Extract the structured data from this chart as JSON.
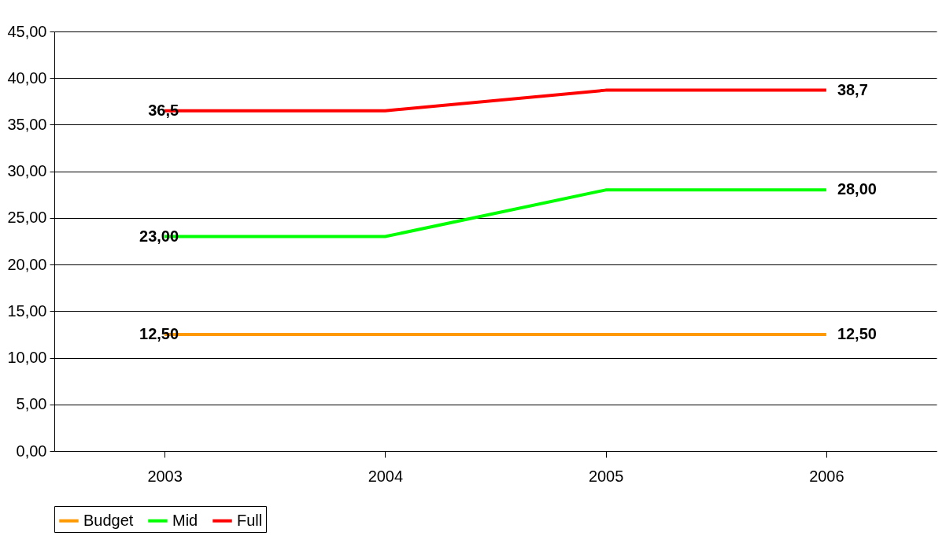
{
  "chart_data": {
    "type": "line",
    "categories": [
      "2003",
      "2004",
      "2005",
      "2006"
    ],
    "series": [
      {
        "name": "Budget",
        "color": "#ff9900",
        "values": [
          12.5,
          12.5,
          12.5,
          12.5
        ],
        "value_labels": [
          "12,50",
          null,
          null,
          "12,50"
        ]
      },
      {
        "name": "Mid",
        "color": "#00ff00",
        "values": [
          23,
          23,
          28,
          28
        ],
        "value_labels": [
          "23,00",
          null,
          null,
          "28,00"
        ]
      },
      {
        "name": "Full",
        "color": "#ff0000",
        "values": [
          36.5,
          36.5,
          38.7,
          38.7
        ],
        "value_labels": [
          "36,5",
          null,
          null,
          "38,7"
        ]
      }
    ],
    "ylim": [
      0,
      45
    ],
    "yticks": [
      {
        "value": 0,
        "label": "0,00"
      },
      {
        "value": 5,
        "label": "5,00"
      },
      {
        "value": 10,
        "label": "10,00"
      },
      {
        "value": 15,
        "label": "15,00"
      },
      {
        "value": 20,
        "label": "20,00"
      },
      {
        "value": 25,
        "label": "25,00"
      },
      {
        "value": 30,
        "label": "30,00"
      },
      {
        "value": 35,
        "label": "35,00"
      },
      {
        "value": 40,
        "label": "40,00"
      },
      {
        "value": 45,
        "label": "45,00"
      }
    ],
    "grid": "y",
    "legend": "bottom",
    "marker": "none",
    "line_style": "solid"
  }
}
